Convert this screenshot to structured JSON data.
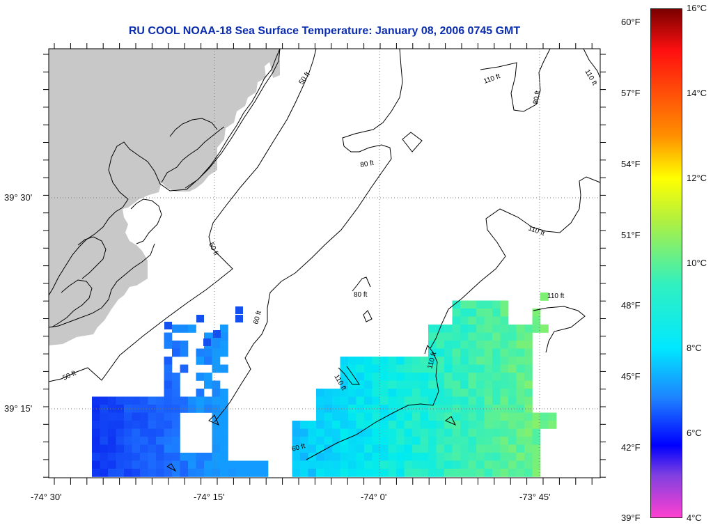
{
  "title": "RU COOL  NOAA-18  Sea Surface Temperature:  January 08, 2006 0745 GMT",
  "lat_labels": [
    "39° 30'",
    "39° 15'"
  ],
  "lon_labels": [
    "-74° 30'",
    "-74° 15'",
    "-74° 0'",
    "-73° 45'"
  ],
  "contours": [
    {
      "label": "50 ft"
    },
    {
      "label": "60 ft"
    },
    {
      "label": "80 ft"
    },
    {
      "label": "110 ft"
    }
  ],
  "colorbar": {
    "fahrenheit": [
      "60°F",
      "57°F",
      "54°F",
      "51°F",
      "48°F",
      "45°F",
      "42°F",
      "39°F"
    ],
    "celsius": [
      "16°C",
      "14°C",
      "12°C",
      "10°C",
      "8°C",
      "6°C",
      "4°C"
    ],
    "stops": [
      {
        "c": 16,
        "color": "#7a0000"
      },
      {
        "c": 15,
        "color": "#ff1010"
      },
      {
        "c": 13,
        "color": "#ff9000"
      },
      {
        "c": 12,
        "color": "#ffff00"
      },
      {
        "c": 11,
        "color": "#b0f040"
      },
      {
        "c": 9.5,
        "color": "#30f0c0"
      },
      {
        "c": 8,
        "color": "#00e8ff"
      },
      {
        "c": 6.8,
        "color": "#1e80ff"
      },
      {
        "c": 5.7,
        "color": "#0000ff"
      },
      {
        "c": 5,
        "color": "#8040e0"
      },
      {
        "c": 4,
        "color": "#ff40d0"
      }
    ]
  },
  "colors": {
    "land": "#c8c8c8",
    "grid": "#777777",
    "title": "#0a2cb0"
  }
}
